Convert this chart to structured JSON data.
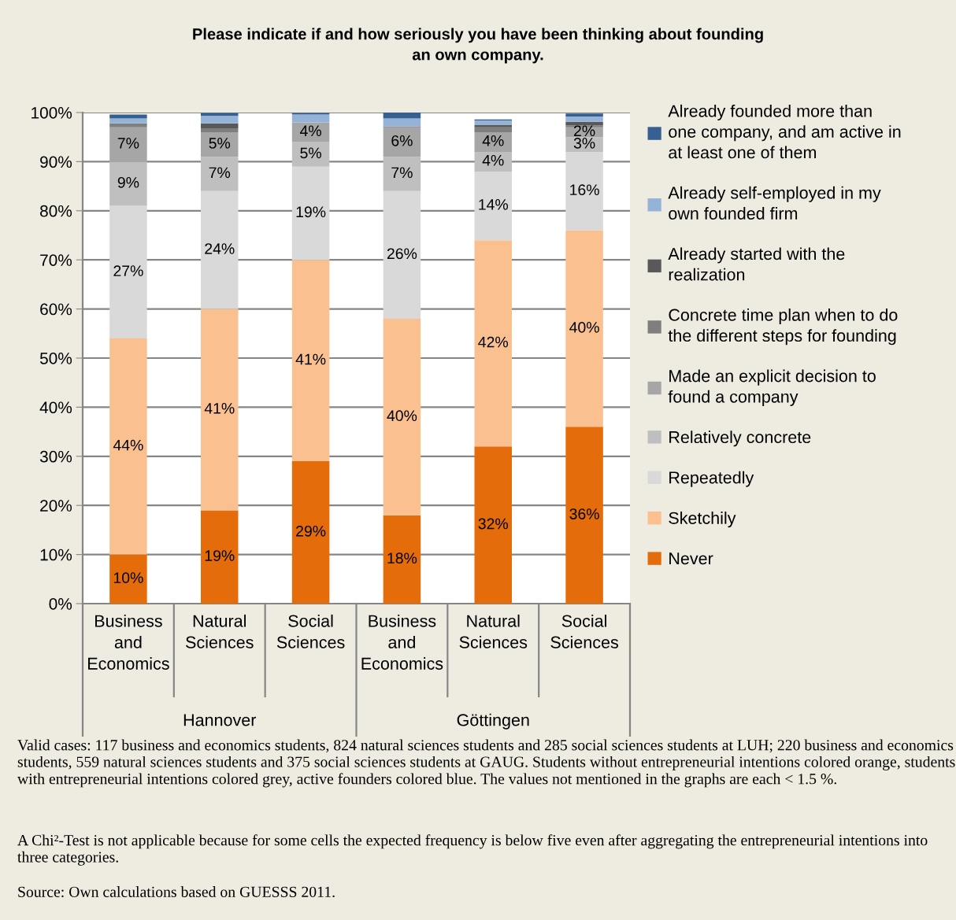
{
  "chart_data": {
    "type": "bar",
    "stacked": true,
    "title": "Please indicate if and how seriously you have been thinking about founding\nan own company.",
    "categories": [
      "Business\nand\nEconomics",
      "Natural\nSciences",
      "Social\nSciences",
      "Business\nand\nEconomics",
      "Natural\nSciences",
      "Social\nSciences"
    ],
    "series": [
      {
        "name": "Never",
        "color": "#e46c0a",
        "values": [
          10,
          19,
          29,
          18,
          32,
          36
        ],
        "value_labels": [
          "10%",
          "19%",
          "29%",
          "18%",
          "32%",
          "36%"
        ]
      },
      {
        "name": "Sketchily",
        "color": "#fac090",
        "values": [
          44,
          41,
          41,
          40,
          42,
          40
        ],
        "value_labels": [
          "44%",
          "41%",
          "41%",
          "40%",
          "42%",
          "40%"
        ]
      },
      {
        "name": "Repeatedly",
        "color": "#d9d9d9",
        "values": [
          27,
          24,
          19,
          26,
          14,
          16
        ],
        "value_labels": [
          "27%",
          "24%",
          "19%",
          "26%",
          "14%",
          "16%"
        ]
      },
      {
        "name": "Relatively concrete",
        "color": "#bfbfbf",
        "values": [
          9,
          7,
          5,
          7,
          4,
          3
        ],
        "value_labels": [
          "9%",
          "7%",
          "5%",
          "7%",
          "4%",
          "3%"
        ]
      },
      {
        "name": "Made an explicit decision to\nfound a company",
        "color": "#a6a6a6",
        "values": [
          7,
          5,
          4,
          6,
          4,
          2
        ],
        "value_labels": [
          "7%",
          "5%",
          "4%",
          "6%",
          "4%",
          "2%"
        ]
      },
      {
        "name": "Concrete time plan when to do\nthe different steps for founding",
        "color": "#7f7f7f",
        "values": [
          0.8,
          0.8,
          0,
          0.2,
          1.0,
          0.4
        ]
      },
      {
        "name": "Already started with the\nrealization",
        "color": "#595959",
        "values": [
          0,
          1.0,
          0,
          0,
          0.5,
          0.7
        ]
      },
      {
        "name": "Already self-employed in my\nown founded firm",
        "color": "#95b3d7",
        "values": [
          1.0,
          1.5,
          1.6,
          1.6,
          0.9,
          1.1
        ]
      },
      {
        "name": "Already founded more than\none company, and am active in\nat least one of them",
        "color": "#376092",
        "values": [
          0.8,
          0.6,
          0.3,
          1.4,
          0.2,
          0.6
        ]
      }
    ],
    "ylim": [
      0,
      100
    ],
    "yticks": [
      {
        "value": 0,
        "label": "0%"
      },
      {
        "value": 10,
        "label": "10%"
      },
      {
        "value": 20,
        "label": "20%"
      },
      {
        "value": 30,
        "label": "30%"
      },
      {
        "value": 40,
        "label": "40%"
      },
      {
        "value": 50,
        "label": "50%"
      },
      {
        "value": 60,
        "label": "60%"
      },
      {
        "value": 70,
        "label": "70%"
      },
      {
        "value": 80,
        "label": "80%"
      },
      {
        "value": 90,
        "label": "90%"
      },
      {
        "value": 100,
        "label": "100%"
      }
    ],
    "grid": "y",
    "legend": "right",
    "annotations": [
      "Hannover",
      "Göttingen",
      "Valid cases: 117 business and economics students, 824 natural sciences students and 285 social sciences students at LUH; 220 business and economics students, 559 natural sciences students and 375 social sciences students at GAUG. Students without entrepreneurial intentions colored orange, students with entrepreneurial intentions colored grey, active founders colored blue. The values not mentioned in the graphs are each < 1.5 %.",
      "A Chi²-Test is not applicable because for some cells the expected frequency is below five even after aggregating the entrepreneurial intentions into three categories.",
      "Source: Own calculations based on GUESSS 2011."
    ]
  }
}
